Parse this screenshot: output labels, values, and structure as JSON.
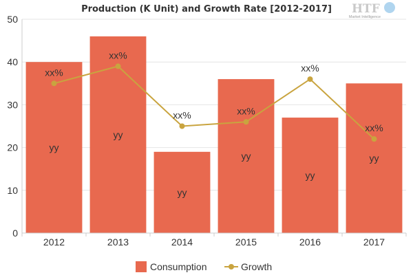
{
  "chart_data": {
    "type": "bar",
    "title": "Production (K Unit) and Growth Rate [2012-2017]",
    "categories": [
      "2012",
      "2013",
      "2014",
      "2015",
      "2016",
      "2017"
    ],
    "ylim": [
      0,
      50
    ],
    "yticks": [
      "0",
      "10",
      "20",
      "30",
      "40",
      "50"
    ],
    "grid": true,
    "legend_position": "bottom",
    "series": [
      {
        "name": "Consumption",
        "kind": "bar",
        "color": "#e8694f",
        "values": [
          40,
          46,
          19,
          36,
          27,
          35
        ],
        "labels": [
          "yy",
          "yy",
          "yy",
          "yy",
          "yy",
          "yy"
        ]
      },
      {
        "name": "Growth",
        "kind": "line",
        "color": "#c9a43f",
        "values": [
          35,
          39,
          25,
          26,
          36,
          22
        ],
        "labels": [
          "xx%",
          "xx%",
          "xx%",
          "xx%",
          "xx%",
          "xx%"
        ]
      }
    ]
  },
  "logo": {
    "text": "HTF",
    "subtitle": "Market Intelligence"
  }
}
